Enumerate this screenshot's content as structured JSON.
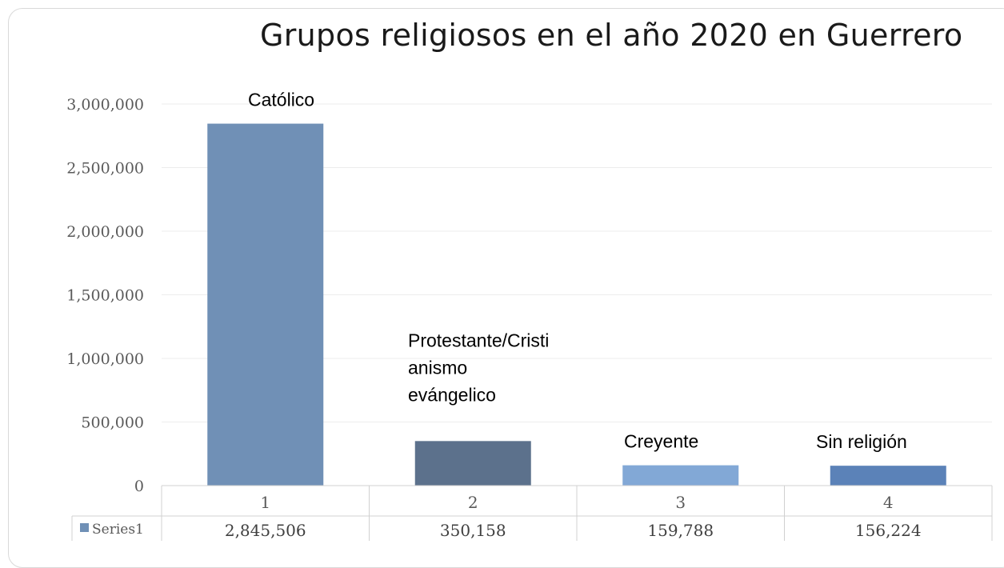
{
  "chart_data": {
    "type": "bar",
    "title": "Grupos religiosos en el año 2020 en Guerrero",
    "categories": [
      "1",
      "2",
      "3",
      "4"
    ],
    "series": [
      {
        "name": "Series1",
        "values": [
          2845506,
          350158,
          159788,
          156224
        ],
        "value_labels": [
          "2,845,506",
          "350,158",
          "159,788",
          "156,224"
        ],
        "colors": [
          "#7090b6",
          "#5c718c",
          "#82a8d6",
          "#5b82b8"
        ]
      }
    ],
    "bar_labels": [
      [
        "Católico"
      ],
      [
        "Protestante/Cristi",
        "anismo",
        "evángelico"
      ],
      [
        "Creyente"
      ],
      [
        "Sin religión"
      ]
    ],
    "yticks": [
      0,
      500000,
      1000000,
      1500000,
      2000000,
      2500000,
      3000000
    ],
    "ytick_labels": [
      "0",
      "500,000",
      "1,000,000",
      "1,500,000",
      "2,000,000",
      "2,500,000",
      "3,000,000"
    ],
    "ylim": [
      0,
      3000000
    ],
    "grid": true,
    "legend": "data-table",
    "series_key_color": "#7090b6"
  }
}
